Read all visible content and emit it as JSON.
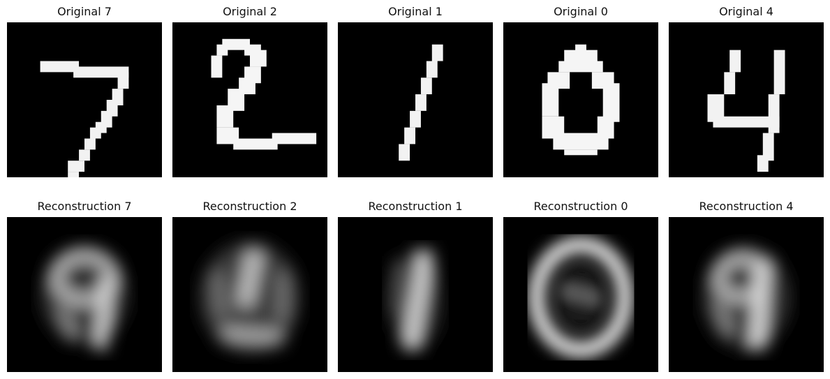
{
  "figure": {
    "rows": [
      {
        "row_name": "original",
        "panels": [
          {
            "title": "Original 7",
            "digit": "7",
            "kind": "original"
          },
          {
            "title": "Original 2",
            "digit": "2",
            "kind": "original"
          },
          {
            "title": "Original 1",
            "digit": "1",
            "kind": "original"
          },
          {
            "title": "Original 0",
            "digit": "0",
            "kind": "original"
          },
          {
            "title": "Original 4",
            "digit": "4",
            "kind": "original"
          }
        ]
      },
      {
        "row_name": "reconstruction",
        "panels": [
          {
            "title": "Reconstruction 7",
            "digit": "7",
            "kind": "reconstruction"
          },
          {
            "title": "Reconstruction 2",
            "digit": "2",
            "kind": "reconstruction"
          },
          {
            "title": "Reconstruction 1",
            "digit": "1",
            "kind": "reconstruction"
          },
          {
            "title": "Reconstruction 0",
            "digit": "0",
            "kind": "reconstruction"
          },
          {
            "title": "Reconstruction 4",
            "digit": "4",
            "kind": "reconstruction"
          }
        ]
      }
    ],
    "colors": {
      "background": "#ffffff",
      "image_background": "#000000",
      "digit_stroke": "#ffffff",
      "title_text": "#111111"
    }
  }
}
